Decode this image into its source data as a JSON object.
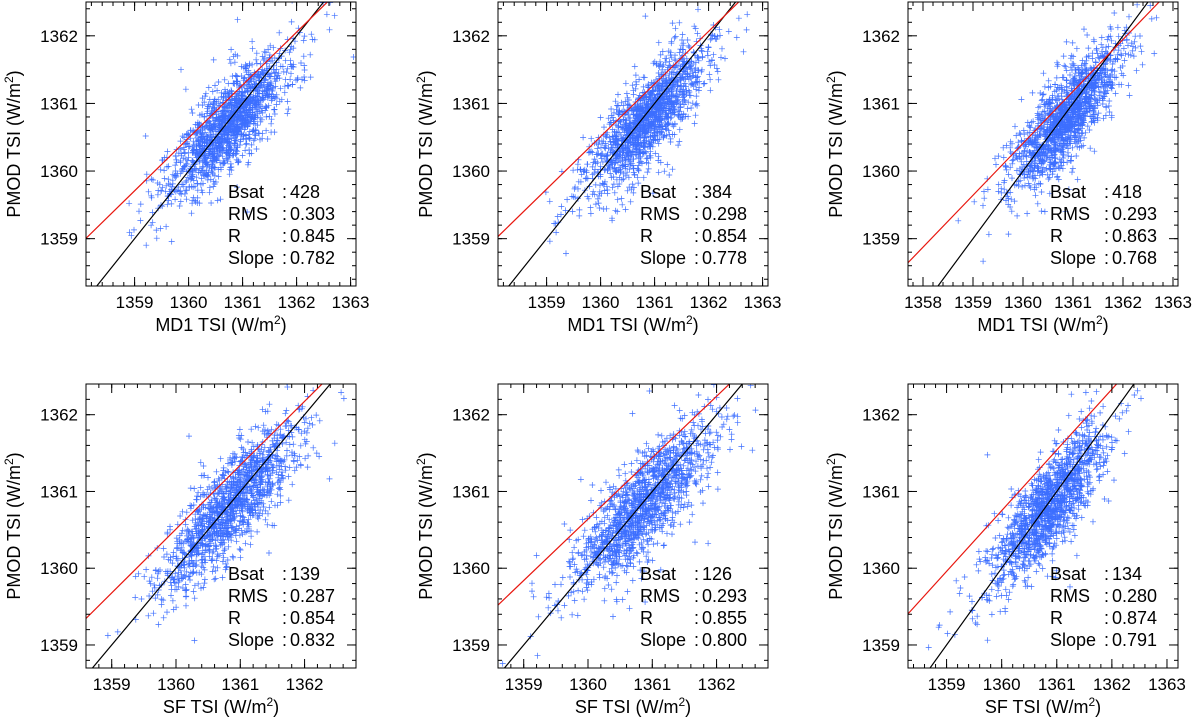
{
  "chart_data": [
    {
      "type": "scatter",
      "xlabel": "MD1 TSI (W/m",
      "ylabel": "PMOD TSI (W/m",
      "unit_superscript": "2",
      "unit_close": ")",
      "xlim": [
        1358.1,
        1363.1
      ],
      "ylim": [
        1358.3,
        1362.5
      ],
      "xticks": [
        1359,
        1360,
        1361,
        1362,
        1363
      ],
      "yticks": [
        1359,
        1360,
        1361,
        1362
      ],
      "stats_labels": [
        "Bsat",
        "RMS",
        "R",
        "Slope"
      ],
      "stats_values": [
        "428",
        "0.303",
        "0.845",
        "0.782"
      ],
      "fit_line": {
        "slope": 0.782,
        "intercept": 296.97,
        "color": "#e8170f"
      },
      "identity_line": {
        "slope": 1,
        "intercept": 0,
        "color": "#000000"
      },
      "cloud": {
        "n": 1500,
        "cx": 1360.75,
        "cy": 1360.7,
        "sx": 0.5,
        "rms": 0.303,
        "slope": 0.782,
        "color": "#3d6fff",
        "seed": 11
      }
    },
    {
      "type": "scatter",
      "xlabel": "MD1 TSI (W/m",
      "ylabel": "PMOD TSI (W/m",
      "unit_superscript": "2",
      "unit_close": ")",
      "xlim": [
        1358.1,
        1363.1
      ],
      "ylim": [
        1358.3,
        1362.5
      ],
      "xticks": [
        1359,
        1360,
        1361,
        1362,
        1363
      ],
      "yticks": [
        1359,
        1360,
        1361,
        1362
      ],
      "stats_labels": [
        "Bsat",
        "RMS",
        "R",
        "Slope"
      ],
      "stats_values": [
        "384",
        "0.298",
        "0.854",
        "0.778"
      ],
      "fit_line": {
        "slope": 0.778,
        "intercept": 302.43,
        "color": "#e8170f"
      },
      "identity_line": {
        "slope": 1,
        "intercept": 0,
        "color": "#000000"
      },
      "cloud": {
        "n": 1500,
        "cx": 1360.85,
        "cy": 1360.75,
        "sx": 0.5,
        "rms": 0.298,
        "slope": 0.778,
        "color": "#3d6fff",
        "seed": 23
      }
    },
    {
      "type": "scatter",
      "xlabel": "MD1 TSI (W/m",
      "ylabel": "PMOD TSI (W/m",
      "unit_superscript": "2",
      "unit_close": ")",
      "xlim": [
        1357.7,
        1363.1
      ],
      "ylim": [
        1358.3,
        1362.5
      ],
      "xticks": [
        1358,
        1359,
        1360,
        1361,
        1362,
        1363
      ],
      "yticks": [
        1359,
        1360,
        1361,
        1362
      ],
      "stats_labels": [
        "Bsat",
        "RMS",
        "R",
        "Slope"
      ],
      "stats_values": [
        "418",
        "0.293",
        "0.863",
        "0.768"
      ],
      "fit_line": {
        "slope": 0.768,
        "intercept": 315.93,
        "color": "#e8170f"
      },
      "identity_line": {
        "slope": 1,
        "intercept": 0,
        "color": "#000000"
      },
      "cloud": {
        "n": 1500,
        "cx": 1360.85,
        "cy": 1360.8,
        "sx": 0.5,
        "rms": 0.293,
        "slope": 0.768,
        "color": "#3d6fff",
        "seed": 37
      }
    },
    {
      "type": "scatter",
      "xlabel": "SF TSI (W/m",
      "ylabel": "PMOD TSI (W/m",
      "unit_superscript": "2",
      "unit_close": ")",
      "xlim": [
        1358.6,
        1362.8
      ],
      "ylim": [
        1358.7,
        1362.4
      ],
      "xticks": [
        1359,
        1360,
        1361,
        1362
      ],
      "yticks": [
        1359,
        1360,
        1361,
        1362
      ],
      "stats_labels": [
        "Bsat",
        "RMS",
        "R",
        "Slope"
      ],
      "stats_values": [
        "139",
        "0.287",
        "0.854",
        "0.832"
      ],
      "fit_line": {
        "slope": 0.832,
        "intercept": 228.99,
        "color": "#e8170f"
      },
      "identity_line": {
        "slope": 1,
        "intercept": 0,
        "color": "#000000"
      },
      "cloud": {
        "n": 1400,
        "cx": 1360.85,
        "cy": 1360.8,
        "sx": 0.5,
        "rms": 0.287,
        "slope": 0.832,
        "color": "#3d6fff",
        "seed": 51
      }
    },
    {
      "type": "scatter",
      "xlabel": "SF TSI (W/m",
      "ylabel": "PMOD TSI (W/m",
      "unit_superscript": "2",
      "unit_close": ")",
      "xlim": [
        1358.6,
        1362.8
      ],
      "ylim": [
        1358.7,
        1362.4
      ],
      "xticks": [
        1359,
        1360,
        1361,
        1362
      ],
      "yticks": [
        1359,
        1360,
        1361,
        1362
      ],
      "stats_labels": [
        "Bsat",
        "RMS",
        "R",
        "Slope"
      ],
      "stats_values": [
        "126",
        "0.293",
        "0.855",
        "0.800"
      ],
      "fit_line": {
        "slope": 0.8,
        "intercept": 272.64,
        "color": "#e8170f"
      },
      "identity_line": {
        "slope": 1,
        "intercept": 0,
        "color": "#000000"
      },
      "cloud": {
        "n": 1400,
        "cx": 1360.85,
        "cy": 1360.8,
        "sx": 0.5,
        "rms": 0.293,
        "slope": 0.8,
        "color": "#3d6fff",
        "seed": 67
      }
    },
    {
      "type": "scatter",
      "xlabel": "SF TSI (W/m",
      "ylabel": "PMOD TSI (W/m",
      "unit_superscript": "2",
      "unit_close": ")",
      "xlim": [
        1358.3,
        1363.2
      ],
      "ylim": [
        1358.7,
        1362.4
      ],
      "xticks": [
        1359,
        1360,
        1361,
        1362,
        1363
      ],
      "yticks": [
        1359,
        1360,
        1361,
        1362
      ],
      "stats_labels": [
        "Bsat",
        "RMS",
        "R",
        "Slope"
      ],
      "stats_values": [
        "134",
        "0.280",
        "0.874",
        "0.791"
      ],
      "fit_line": {
        "slope": 0.791,
        "intercept": 284.99,
        "color": "#e8170f"
      },
      "identity_line": {
        "slope": 1,
        "intercept": 0,
        "color": "#000000"
      },
      "cloud": {
        "n": 1400,
        "cx": 1360.85,
        "cy": 1360.8,
        "sx": 0.5,
        "rms": 0.28,
        "slope": 0.791,
        "color": "#3d6fff",
        "seed": 83
      }
    }
  ]
}
